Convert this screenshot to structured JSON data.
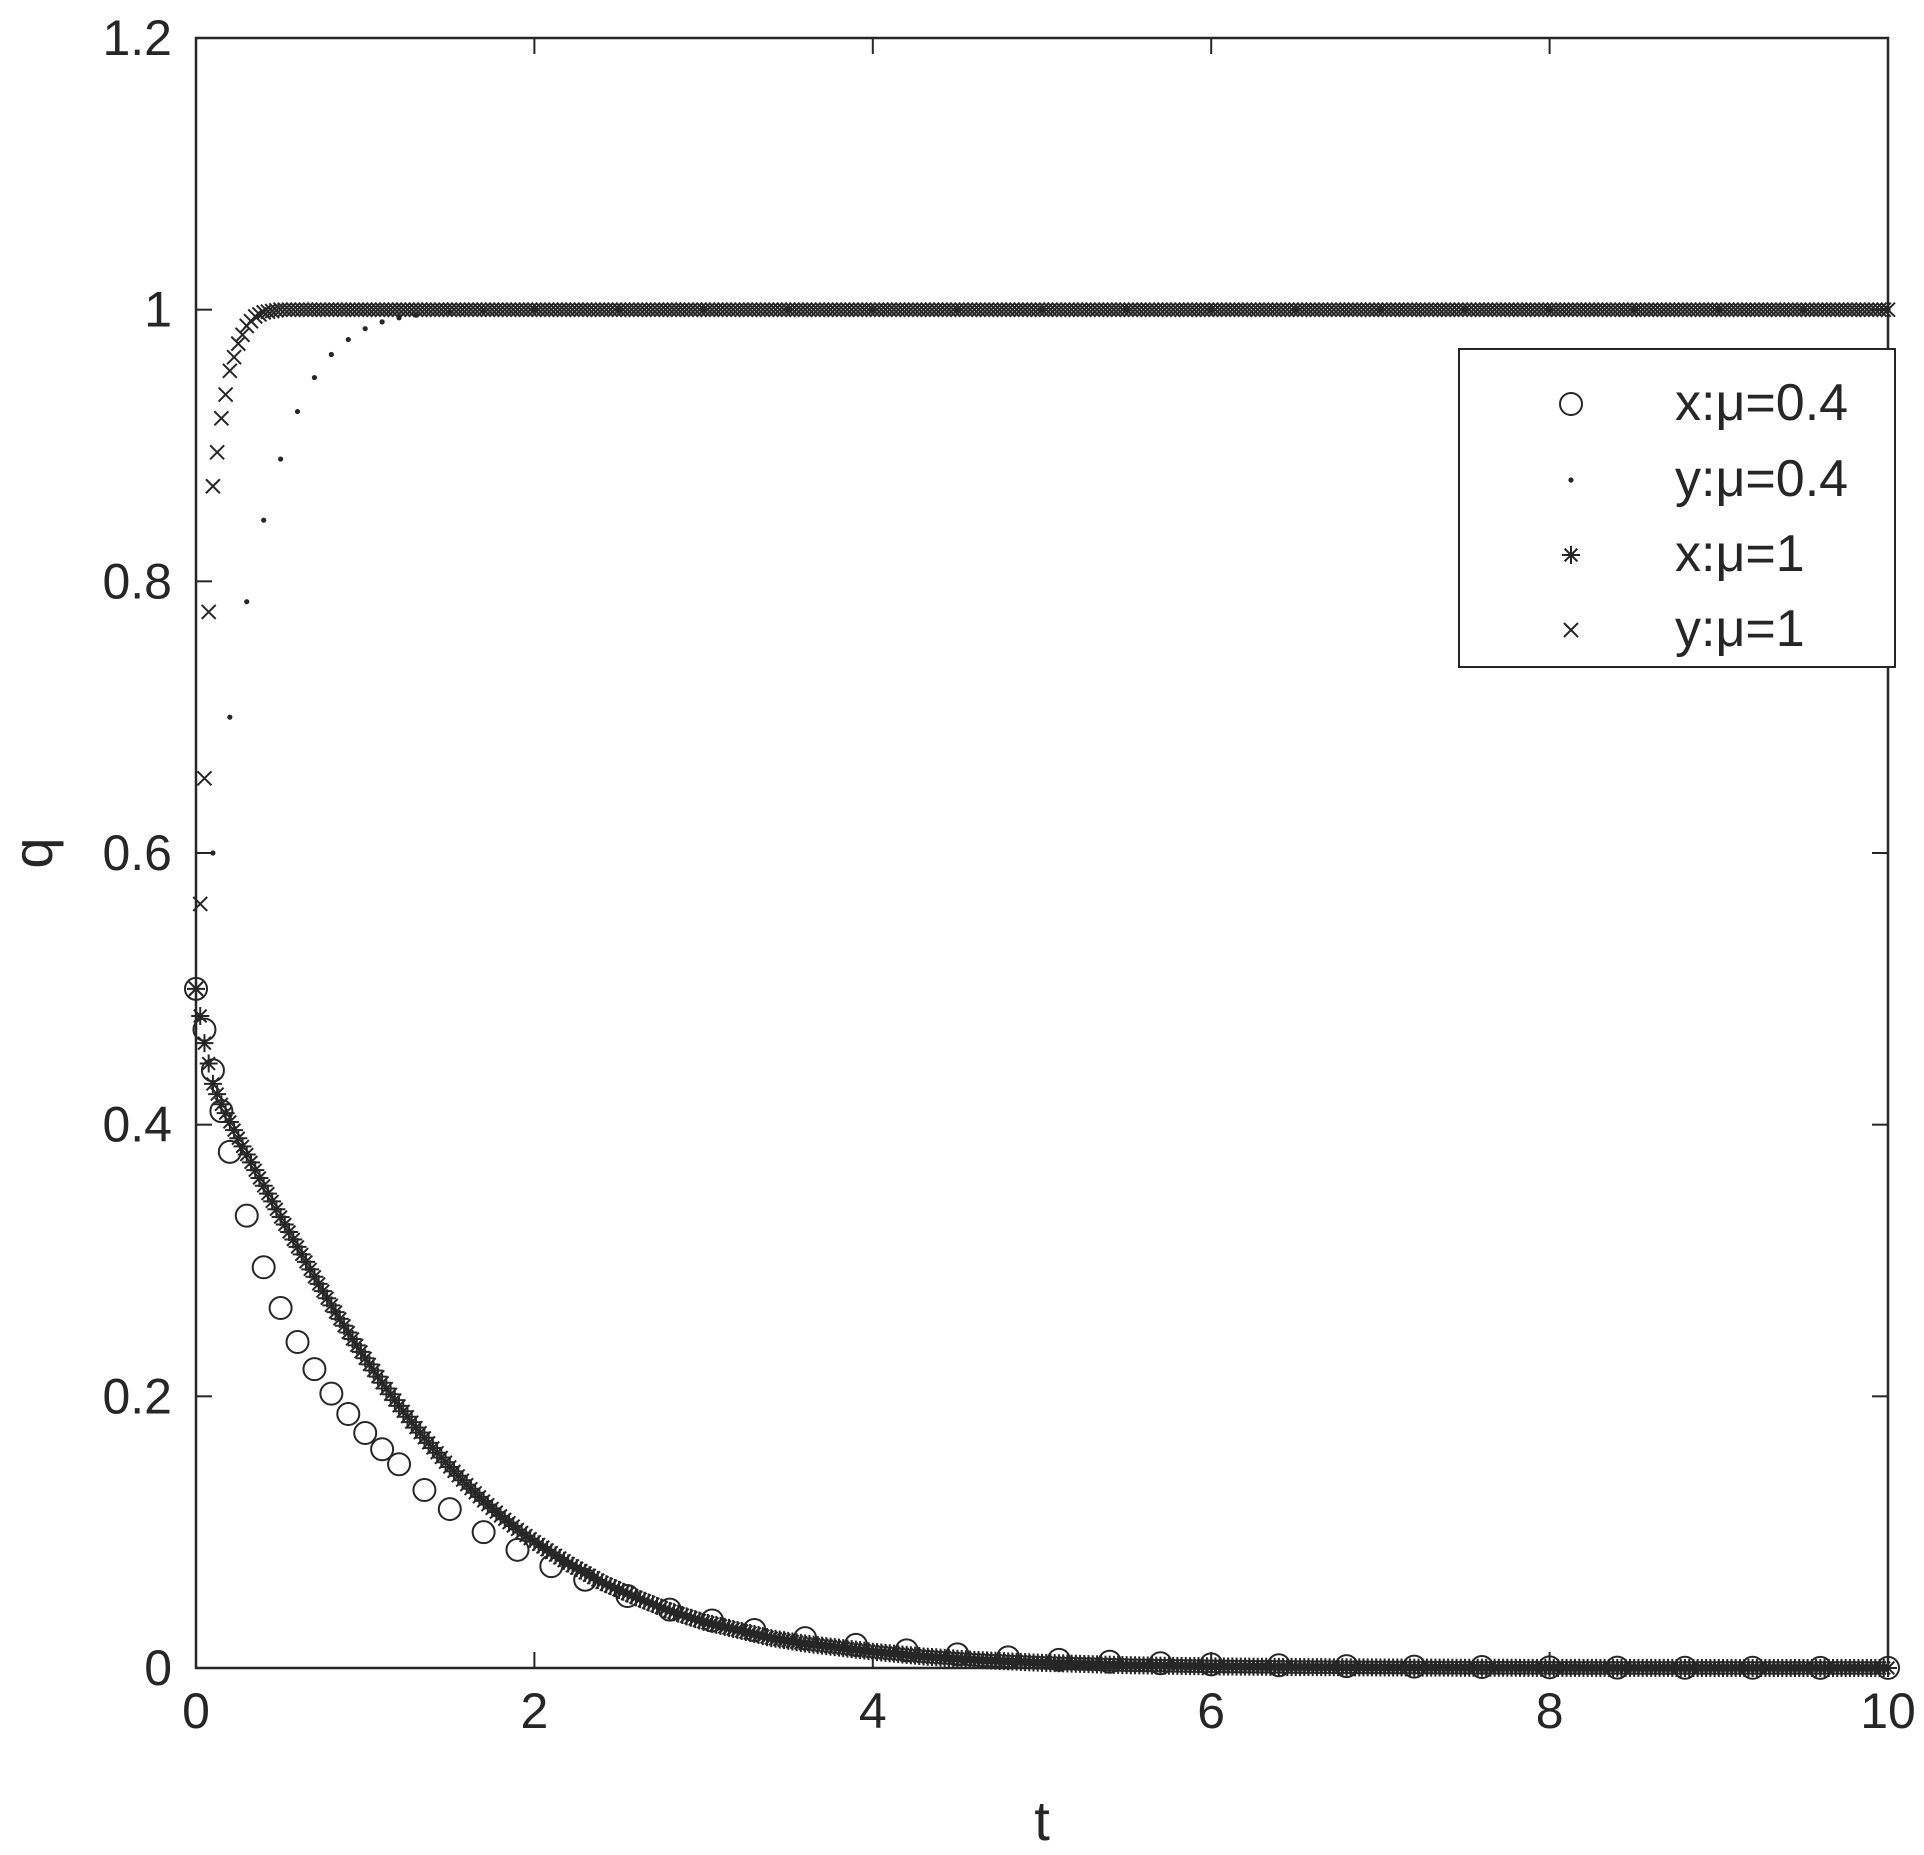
{
  "chart_data": {
    "type": "scatter",
    "title": "",
    "xlabel": "t",
    "ylabel": "q",
    "xlim": [
      0,
      10
    ],
    "ylim": [
      0,
      1.2
    ],
    "xticks": [
      "0",
      "2",
      "4",
      "6",
      "8",
      "10"
    ],
    "yticks": [
      "0",
      "0.2",
      "0.4",
      "0.6",
      "0.8",
      "1",
      "1.2"
    ],
    "grid": false,
    "legend_position": "top-right",
    "series": [
      {
        "name": "x:μ=0.4",
        "marker": "o",
        "x": [
          0,
          0.05,
          0.1,
          0.15,
          0.2,
          0.3,
          0.4,
          0.5,
          0.6,
          0.7,
          0.8,
          0.9,
          1.0,
          1.1,
          1.2,
          1.35,
          1.5,
          1.7,
          1.9,
          2.1,
          2.3,
          2.55,
          2.8,
          3.05,
          3.3,
          3.6,
          3.9,
          4.2,
          4.5,
          4.8,
          5.1,
          5.4,
          5.7,
          6.0,
          6.4,
          6.8,
          7.2,
          7.6,
          8.0,
          8.4,
          8.8,
          9.2,
          9.6,
          10.0
        ],
        "y": [
          0.5,
          0.47,
          0.44,
          0.41,
          0.38,
          0.333,
          0.295,
          0.265,
          0.24,
          0.22,
          0.202,
          0.187,
          0.173,
          0.161,
          0.15,
          0.131,
          0.117,
          0.1,
          0.087,
          0.075,
          0.065,
          0.053,
          0.043,
          0.035,
          0.028,
          0.022,
          0.017,
          0.013,
          0.01,
          0.0078,
          0.006,
          0.0046,
          0.0035,
          0.0027,
          0.002,
          0.0014,
          0.001,
          0.0007,
          0.0005,
          0.0003,
          0.0002,
          0.00015,
          0.0001,
          8e-05
        ]
      },
      {
        "name": "y:μ=0.4",
        "marker": ".",
        "x": [
          0,
          0.1,
          0.2,
          0.3,
          0.4,
          0.5,
          0.6,
          0.7,
          0.8,
          0.9,
          1.0,
          1.1,
          1.2,
          1.3,
          1.5,
          1.7,
          2.0,
          2.5,
          3.0,
          3.5,
          4.0,
          4.5,
          5.0,
          5.5,
          6.0,
          6.5,
          7.0,
          7.5,
          8.0,
          8.5,
          9.0,
          9.5,
          10.0
        ],
        "y": [
          0.5,
          0.6,
          0.7,
          0.785,
          0.845,
          0.89,
          0.925,
          0.95,
          0.967,
          0.978,
          0.986,
          0.991,
          0.994,
          0.996,
          0.998,
          0.999,
          1.0,
          1.0,
          1.0,
          1.0,
          1.0,
          1.0,
          1.0,
          1.0,
          1.0,
          1.0,
          1.0,
          1.0,
          1.0,
          1.0,
          1.0,
          1.0,
          1.0
        ]
      },
      {
        "name": "x:μ=1",
        "marker": "*",
        "x": [
          0,
          0.05,
          0.1,
          0.15,
          0.2,
          0.25,
          0.3,
          0.4,
          0.5,
          0.6,
          0.7,
          0.8,
          0.9,
          1.0,
          1.1,
          1.2,
          1.3,
          1.4,
          1.5,
          1.6,
          1.7,
          1.8,
          1.9,
          2.0,
          2.2,
          2.4,
          2.6,
          2.8,
          3.0,
          3.2,
          3.4,
          3.6,
          3.8,
          4.0,
          4.3,
          4.6,
          5.0,
          5.5,
          6.0,
          6.5,
          7.0,
          7.5,
          8.0,
          8.5,
          9.0,
          9.5,
          10.0
        ],
        "y": [
          0.5,
          0.46,
          0.43,
          0.415,
          0.402,
          0.39,
          0.378,
          0.355,
          0.332,
          0.31,
          0.288,
          0.267,
          0.247,
          0.228,
          0.21,
          0.193,
          0.177,
          0.162,
          0.148,
          0.135,
          0.123,
          0.112,
          0.102,
          0.093,
          0.077,
          0.063,
          0.052,
          0.042,
          0.034,
          0.028,
          0.022,
          0.018,
          0.015,
          0.012,
          0.0085,
          0.006,
          0.0038,
          0.0021,
          0.0012,
          0.0007,
          0.0004,
          0.0002,
          0.0001,
          6e-05,
          3e-05,
          2e-05,
          1e-05
        ]
      },
      {
        "name": "y:μ=1",
        "marker": "x",
        "x": [
          0,
          0.02,
          0.04,
          0.06,
          0.08,
          0.1,
          0.15,
          0.2,
          0.25,
          0.3,
          0.35,
          0.4,
          0.5,
          0.6,
          0.8,
          1.0,
          1.5,
          2.0,
          2.5,
          3.0,
          3.5,
          4.0,
          4.5,
          5.0,
          5.5,
          6.0,
          6.5,
          7.0,
          7.5,
          8.0,
          8.5,
          9.0,
          9.5,
          10.0
        ],
        "y": [
          0.5,
          0.55,
          0.6,
          0.71,
          0.8,
          0.87,
          0.92,
          0.955,
          0.975,
          0.988,
          0.995,
          0.998,
          1.0,
          1.0,
          1.0,
          1.0,
          1.0,
          1.0,
          1.0,
          1.0,
          1.0,
          1.0,
          1.0,
          1.0,
          1.0,
          1.0,
          1.0,
          1.0,
          1.0,
          1.0,
          1.0,
          1.0,
          1.0,
          1.0
        ]
      }
    ]
  }
}
